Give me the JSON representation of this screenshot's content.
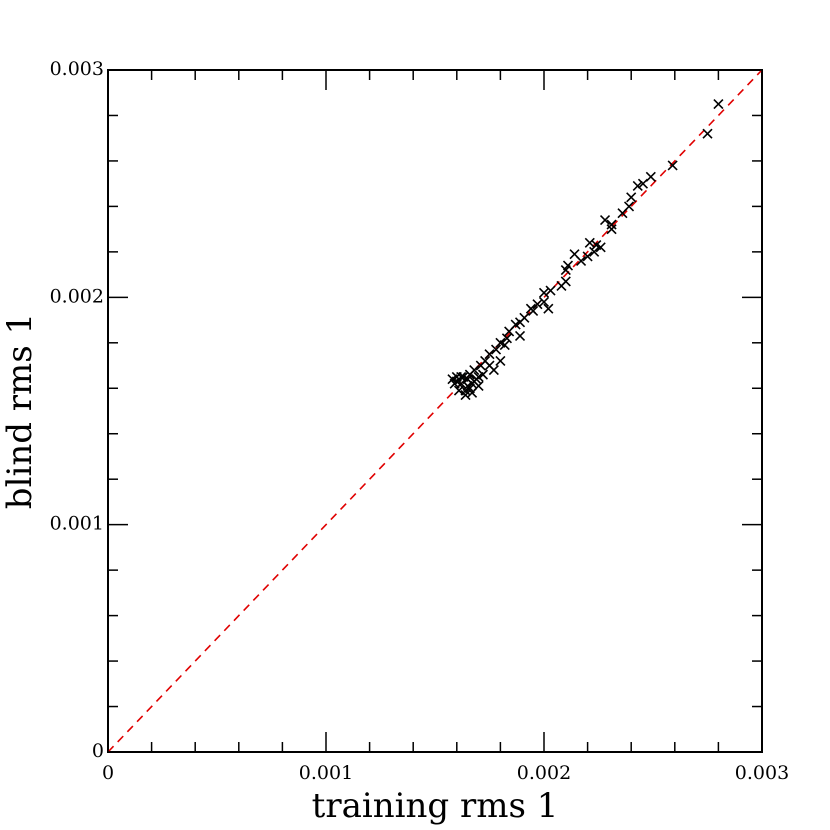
{
  "chart_data": {
    "type": "scatter",
    "xlabel": "training rms 1",
    "ylabel": "blind rms 1",
    "xlim": [
      0,
      0.003
    ],
    "ylim": [
      0,
      0.003
    ],
    "xticks": [
      0,
      0.001,
      0.002,
      0.003
    ],
    "yticks": [
      0,
      0.001,
      0.002,
      0.003
    ],
    "xminorticks": [
      0.0002,
      0.0004,
      0.0006,
      0.0008,
      0.0012,
      0.0014,
      0.0016,
      0.0018,
      0.0022,
      0.0024,
      0.0026,
      0.0028
    ],
    "yminorticks": [
      0.0002,
      0.0004,
      0.0006,
      0.0008,
      0.0012,
      0.0014,
      0.0016,
      0.0018,
      0.0022,
      0.0024,
      0.0026,
      0.0028
    ],
    "identity_line_color": "#e00000",
    "color": "#000000",
    "x": [
      0.0028,
      0.00275,
      0.00259,
      0.00249,
      0.002454,
      0.00243,
      0.0024,
      0.00239,
      0.00236,
      0.00231,
      0.00228,
      0.00231,
      0.00224,
      0.00226,
      0.00221,
      0.00223,
      0.0022,
      0.00217,
      0.00214,
      0.00211,
      0.0021,
      0.0021,
      0.00208,
      0.00203,
      0.002,
      0.002,
      0.00197,
      0.00202,
      0.00194,
      0.00195,
      0.00191,
      0.00189,
      0.00187,
      0.00184,
      0.00189,
      0.00183,
      0.0018,
      0.00182,
      0.00178,
      0.00175,
      0.0018,
      0.00173,
      0.00171,
      0.00175,
      0.00177,
      0.00172,
      0.00168,
      0.0017,
      0.00158,
      0.0016,
      0.00162,
      0.00164,
      0.00166,
      0.00165,
      0.00167,
      0.00169,
      0.00161,
      0.00159,
      0.00164,
      0.00167,
      0.0017,
      0.00163,
      0.00166,
      0.00162,
      0.0016,
      0.00165,
      0.00168
    ],
    "values": [
      0.00285,
      0.00272,
      0.00258,
      0.00253,
      0.0025,
      0.00249,
      0.00244,
      0.0024,
      0.00237,
      0.00232,
      0.00234,
      0.0023,
      0.00223,
      0.00222,
      0.00224,
      0.0022,
      0.00218,
      0.00216,
      0.00219,
      0.00214,
      0.00212,
      0.00207,
      0.00205,
      0.00203,
      0.00202,
      0.00198,
      0.00197,
      0.00195,
      0.00195,
      0.00194,
      0.00191,
      0.00189,
      0.00188,
      0.00185,
      0.00183,
      0.00182,
      0.0018,
      0.00179,
      0.00177,
      0.00175,
      0.00172,
      0.00172,
      0.0017,
      0.0017,
      0.00168,
      0.00166,
      0.00168,
      0.00165,
      0.00164,
      0.00165,
      0.00162,
      0.00159,
      0.0016,
      0.00164,
      0.00162,
      0.00164,
      0.00159,
      0.00162,
      0.00157,
      0.00158,
      0.00161,
      0.00165,
      0.00166,
      0.00165,
      0.00163,
      0.00161,
      0.00163
    ]
  }
}
